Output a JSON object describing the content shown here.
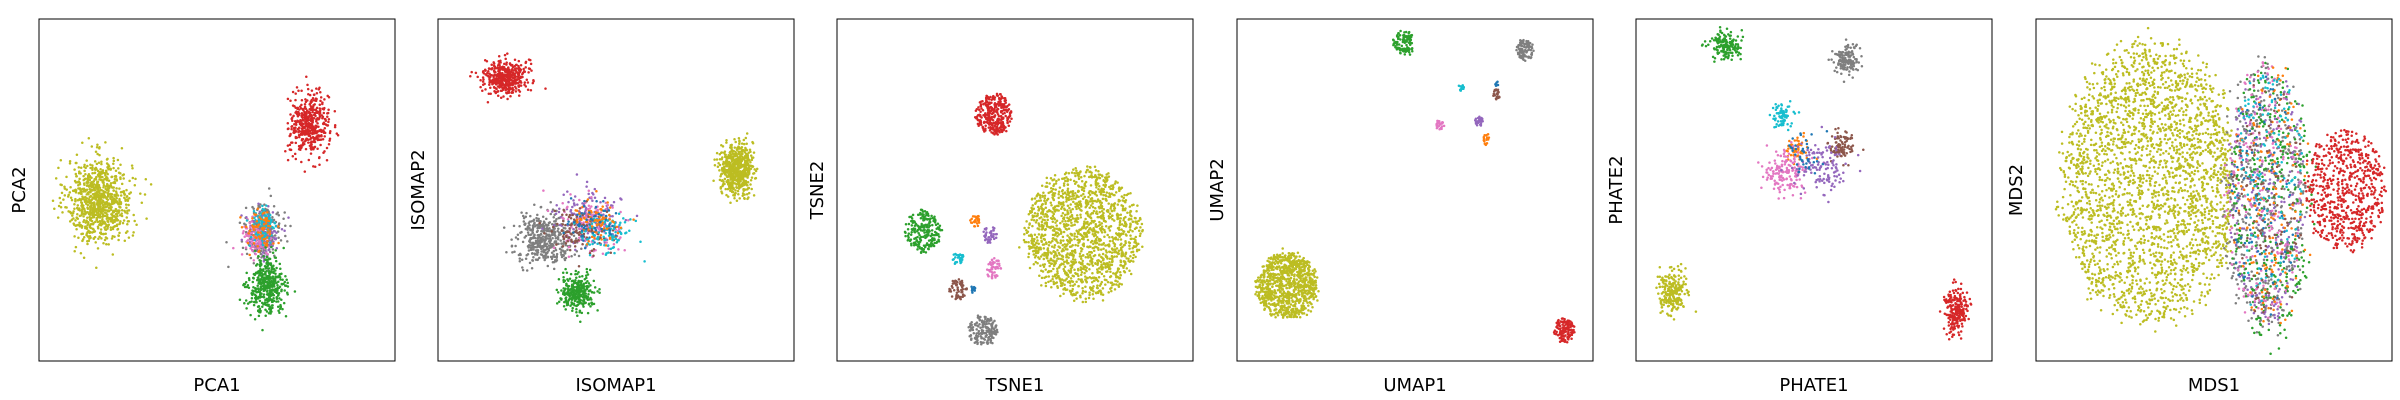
{
  "figure": {
    "title": ""
  },
  "colors": {
    "blue": "#1f77b4",
    "orange": "#ff7f0e",
    "green": "#2ca02c",
    "red": "#d62728",
    "purple": "#9467bd",
    "brown": "#8c564b",
    "pink": "#e377c2",
    "gray": "#7f7f7f",
    "olive": "#bcbd22",
    "cyan": "#17becf"
  },
  "chart_data": [
    {
      "type": "scatter",
      "xlabel": "PCA1",
      "ylabel": "PCA2",
      "title": "",
      "xlim": [
        0,
        1
      ],
      "ylim": [
        0,
        1
      ],
      "grid": false,
      "ticks": false,
      "clusters": [
        {
          "color": "#bcbd22",
          "center": [
            0.17,
            0.47
          ],
          "spread": [
            0.09,
            0.12
          ],
          "count": 900,
          "shape": "gauss"
        },
        {
          "color": "#d62728",
          "center": [
            0.76,
            0.69
          ],
          "spread": [
            0.055,
            0.09
          ],
          "count": 450,
          "shape": "gauss"
        },
        {
          "color": "#7f7f7f",
          "center": [
            0.63,
            0.38
          ],
          "spread": [
            0.05,
            0.075
          ],
          "count": 240,
          "shape": "gauss"
        },
        {
          "color": "#9467bd",
          "center": [
            0.63,
            0.37
          ],
          "spread": [
            0.045,
            0.07
          ],
          "count": 140,
          "shape": "gauss"
        },
        {
          "color": "#e377c2",
          "center": [
            0.61,
            0.36
          ],
          "spread": [
            0.04,
            0.06
          ],
          "count": 120,
          "shape": "gauss"
        },
        {
          "color": "#17becf",
          "center": [
            0.63,
            0.39
          ],
          "spread": [
            0.04,
            0.06
          ],
          "count": 90,
          "shape": "gauss"
        },
        {
          "color": "#ff7f0e",
          "center": [
            0.62,
            0.38
          ],
          "spread": [
            0.04,
            0.06
          ],
          "count": 70,
          "shape": "gauss"
        },
        {
          "color": "#2ca02c",
          "center": [
            0.64,
            0.22
          ],
          "spread": [
            0.05,
            0.08
          ],
          "count": 420,
          "shape": "gauss"
        }
      ]
    },
    {
      "type": "scatter",
      "xlabel": "ISOMAP1",
      "ylabel": "ISOMAP2",
      "title": "",
      "xlim": [
        0,
        1
      ],
      "ylim": [
        0,
        1
      ],
      "grid": false,
      "ticks": false,
      "clusters": [
        {
          "color": "#d62728",
          "center": [
            0.19,
            0.83
          ],
          "spread": [
            0.06,
            0.05
          ],
          "count": 450,
          "shape": "gauss"
        },
        {
          "color": "#bcbd22",
          "center": [
            0.84,
            0.56
          ],
          "spread": [
            0.045,
            0.07
          ],
          "count": 650,
          "shape": "gauss"
        },
        {
          "color": "#7f7f7f",
          "center": [
            0.3,
            0.36
          ],
          "spread": [
            0.08,
            0.07
          ],
          "count": 420,
          "shape": "gauss"
        },
        {
          "color": "#2ca02c",
          "center": [
            0.39,
            0.2
          ],
          "spread": [
            0.05,
            0.05
          ],
          "count": 300,
          "shape": "gauss"
        },
        {
          "color": "#9467bd",
          "center": [
            0.42,
            0.42
          ],
          "spread": [
            0.09,
            0.08
          ],
          "count": 130,
          "shape": "gauss"
        },
        {
          "color": "#e377c2",
          "center": [
            0.43,
            0.4
          ],
          "spread": [
            0.09,
            0.08
          ],
          "count": 130,
          "shape": "gauss"
        },
        {
          "color": "#8c564b",
          "center": [
            0.4,
            0.38
          ],
          "spread": [
            0.08,
            0.07
          ],
          "count": 110,
          "shape": "gauss"
        },
        {
          "color": "#17becf",
          "center": [
            0.47,
            0.37
          ],
          "spread": [
            0.07,
            0.06
          ],
          "count": 100,
          "shape": "gauss"
        },
        {
          "color": "#ff7f0e",
          "center": [
            0.45,
            0.41
          ],
          "spread": [
            0.07,
            0.06
          ],
          "count": 80,
          "shape": "gauss"
        },
        {
          "color": "#1f77b4",
          "center": [
            0.44,
            0.4
          ],
          "spread": [
            0.07,
            0.06
          ],
          "count": 60,
          "shape": "gauss"
        }
      ]
    },
    {
      "type": "scatter",
      "xlabel": "TSNE1",
      "ylabel": "TSNE2",
      "title": "",
      "xlim": [
        0,
        1
      ],
      "ylim": [
        0,
        1
      ],
      "grid": false,
      "ticks": false,
      "clusters": [
        {
          "color": "#d62728",
          "center": [
            0.44,
            0.72
          ],
          "spread": [
            0.05,
            0.06
          ],
          "count": 320,
          "shape": "disk"
        },
        {
          "color": "#bcbd22",
          "center": [
            0.69,
            0.37
          ],
          "spread": [
            0.16,
            0.19
          ],
          "count": 1500,
          "shape": "disk"
        },
        {
          "color": "#2ca02c",
          "center": [
            0.24,
            0.38
          ],
          "spread": [
            0.05,
            0.06
          ],
          "count": 220,
          "shape": "disk"
        },
        {
          "color": "#7f7f7f",
          "center": [
            0.41,
            0.09
          ],
          "spread": [
            0.04,
            0.045
          ],
          "count": 160,
          "shape": "disk"
        },
        {
          "color": "#8c564b",
          "center": [
            0.34,
            0.21
          ],
          "spread": [
            0.025,
            0.03
          ],
          "count": 60,
          "shape": "disk"
        },
        {
          "color": "#e377c2",
          "center": [
            0.44,
            0.27
          ],
          "spread": [
            0.02,
            0.03
          ],
          "count": 50,
          "shape": "disk"
        },
        {
          "color": "#17becf",
          "center": [
            0.34,
            0.3
          ],
          "spread": [
            0.015,
            0.02
          ],
          "count": 30,
          "shape": "disk"
        },
        {
          "color": "#9467bd",
          "center": [
            0.43,
            0.37
          ],
          "spread": [
            0.02,
            0.025
          ],
          "count": 40,
          "shape": "disk"
        },
        {
          "color": "#ff7f0e",
          "center": [
            0.39,
            0.41
          ],
          "spread": [
            0.015,
            0.018
          ],
          "count": 30,
          "shape": "disk"
        },
        {
          "color": "#1f77b4",
          "center": [
            0.38,
            0.21
          ],
          "spread": [
            0.008,
            0.01
          ],
          "count": 12,
          "shape": "disk"
        }
      ]
    },
    {
      "type": "scatter",
      "xlabel": "UMAP1",
      "ylabel": "UMAP2",
      "title": "",
      "xlim": [
        0,
        1
      ],
      "ylim": [
        0,
        1
      ],
      "grid": false,
      "ticks": false,
      "clusters": [
        {
          "color": "#bcbd22",
          "center": [
            0.14,
            0.22
          ],
          "spread": [
            0.085,
            0.095
          ],
          "count": 900,
          "shape": "disk"
        },
        {
          "color": "#2ca02c",
          "center": [
            0.47,
            0.93
          ],
          "spread": [
            0.03,
            0.035
          ],
          "count": 120,
          "shape": "disk"
        },
        {
          "color": "#7f7f7f",
          "center": [
            0.81,
            0.91
          ],
          "spread": [
            0.025,
            0.03
          ],
          "count": 100,
          "shape": "disk"
        },
        {
          "color": "#d62728",
          "center": [
            0.92,
            0.09
          ],
          "spread": [
            0.03,
            0.035
          ],
          "count": 120,
          "shape": "disk"
        },
        {
          "color": "#17becf",
          "center": [
            0.63,
            0.8
          ],
          "spread": [
            0.008,
            0.01
          ],
          "count": 18,
          "shape": "disk"
        },
        {
          "color": "#8c564b",
          "center": [
            0.73,
            0.78
          ],
          "spread": [
            0.012,
            0.015
          ],
          "count": 25,
          "shape": "disk"
        },
        {
          "color": "#9467bd",
          "center": [
            0.68,
            0.7
          ],
          "spread": [
            0.012,
            0.015
          ],
          "count": 25,
          "shape": "disk"
        },
        {
          "color": "#e377c2",
          "center": [
            0.57,
            0.69
          ],
          "spread": [
            0.012,
            0.015
          ],
          "count": 25,
          "shape": "disk"
        },
        {
          "color": "#ff7f0e",
          "center": [
            0.7,
            0.65
          ],
          "spread": [
            0.008,
            0.02
          ],
          "count": 18,
          "shape": "disk"
        },
        {
          "color": "#1f77b4",
          "center": [
            0.73,
            0.81
          ],
          "spread": [
            0.005,
            0.008
          ],
          "count": 6,
          "shape": "disk"
        }
      ]
    },
    {
      "type": "scatter",
      "xlabel": "PHATE1",
      "ylabel": "PHATE2",
      "title": "",
      "xlim": [
        0,
        1
      ],
      "ylim": [
        0,
        1
      ],
      "grid": false,
      "ticks": false,
      "clusters": [
        {
          "color": "#2ca02c",
          "center": [
            0.25,
            0.92
          ],
          "spread": [
            0.04,
            0.04
          ],
          "count": 160,
          "shape": "gauss"
        },
        {
          "color": "#7f7f7f",
          "center": [
            0.59,
            0.88
          ],
          "spread": [
            0.035,
            0.045
          ],
          "count": 140,
          "shape": "gauss"
        },
        {
          "color": "#17becf",
          "center": [
            0.41,
            0.72
          ],
          "spread": [
            0.035,
            0.04
          ],
          "count": 70,
          "shape": "gauss"
        },
        {
          "color": "#8c564b",
          "center": [
            0.58,
            0.63
          ],
          "spread": [
            0.035,
            0.04
          ],
          "count": 90,
          "shape": "gauss"
        },
        {
          "color": "#ff7f0e",
          "center": [
            0.45,
            0.62
          ],
          "spread": [
            0.03,
            0.035
          ],
          "count": 60,
          "shape": "gauss"
        },
        {
          "color": "#e377c2",
          "center": [
            0.42,
            0.55
          ],
          "spread": [
            0.06,
            0.07
          ],
          "count": 160,
          "shape": "gauss"
        },
        {
          "color": "#9467bd",
          "center": [
            0.52,
            0.57
          ],
          "spread": [
            0.07,
            0.07
          ],
          "count": 120,
          "shape": "gauss"
        },
        {
          "color": "#1f77b4",
          "center": [
            0.47,
            0.6
          ],
          "spread": [
            0.06,
            0.06
          ],
          "count": 40,
          "shape": "gauss"
        },
        {
          "color": "#bcbd22",
          "center": [
            0.1,
            0.2
          ],
          "spread": [
            0.04,
            0.07
          ],
          "count": 220,
          "shape": "gauss"
        },
        {
          "color": "#d62728",
          "center": [
            0.9,
            0.15
          ],
          "spread": [
            0.03,
            0.07
          ],
          "count": 220,
          "shape": "gauss"
        }
      ]
    },
    {
      "type": "scatter",
      "xlabel": "MDS1",
      "ylabel": "MDS2",
      "title": "",
      "xlim": [
        0,
        1
      ],
      "ylim": [
        0,
        1
      ],
      "grid": false,
      "ticks": false,
      "clusters": [
        {
          "color": "#bcbd22",
          "center": [
            0.32,
            0.52
          ],
          "spread": [
            0.25,
            0.41
          ],
          "count": 2600,
          "shape": "disk",
          "xmax": 0.55
        },
        {
          "color": "#7f7f7f",
          "center": [
            0.64,
            0.48
          ],
          "spread": [
            0.12,
            0.4
          ],
          "count": 420,
          "shape": "disk",
          "xmin": 0.47
        },
        {
          "color": "#2ca02c",
          "center": [
            0.66,
            0.46
          ],
          "spread": [
            0.12,
            0.4
          ],
          "count": 360,
          "shape": "disk",
          "xmin": 0.47
        },
        {
          "color": "#9467bd",
          "center": [
            0.65,
            0.48
          ],
          "spread": [
            0.11,
            0.38
          ],
          "count": 220,
          "shape": "disk",
          "xmin": 0.47
        },
        {
          "color": "#e377c2",
          "center": [
            0.64,
            0.5
          ],
          "spread": [
            0.11,
            0.38
          ],
          "count": 200,
          "shape": "disk",
          "xmin": 0.47
        },
        {
          "color": "#ff7f0e",
          "center": [
            0.66,
            0.48
          ],
          "spread": [
            0.11,
            0.38
          ],
          "count": 160,
          "shape": "disk",
          "xmin": 0.47
        },
        {
          "color": "#17becf",
          "center": [
            0.65,
            0.52
          ],
          "spread": [
            0.1,
            0.35
          ],
          "count": 130,
          "shape": "disk",
          "xmin": 0.47
        },
        {
          "color": "#8c564b",
          "center": [
            0.65,
            0.46
          ],
          "spread": [
            0.1,
            0.35
          ],
          "count": 120,
          "shape": "disk",
          "xmin": 0.47
        },
        {
          "color": "#1f77b4",
          "center": [
            0.64,
            0.49
          ],
          "spread": [
            0.1,
            0.35
          ],
          "count": 80,
          "shape": "disk",
          "xmin": 0.47
        },
        {
          "color": "#d62728",
          "center": [
            0.87,
            0.5
          ],
          "spread": [
            0.11,
            0.18
          ],
          "count": 650,
          "shape": "disk"
        }
      ]
    }
  ]
}
